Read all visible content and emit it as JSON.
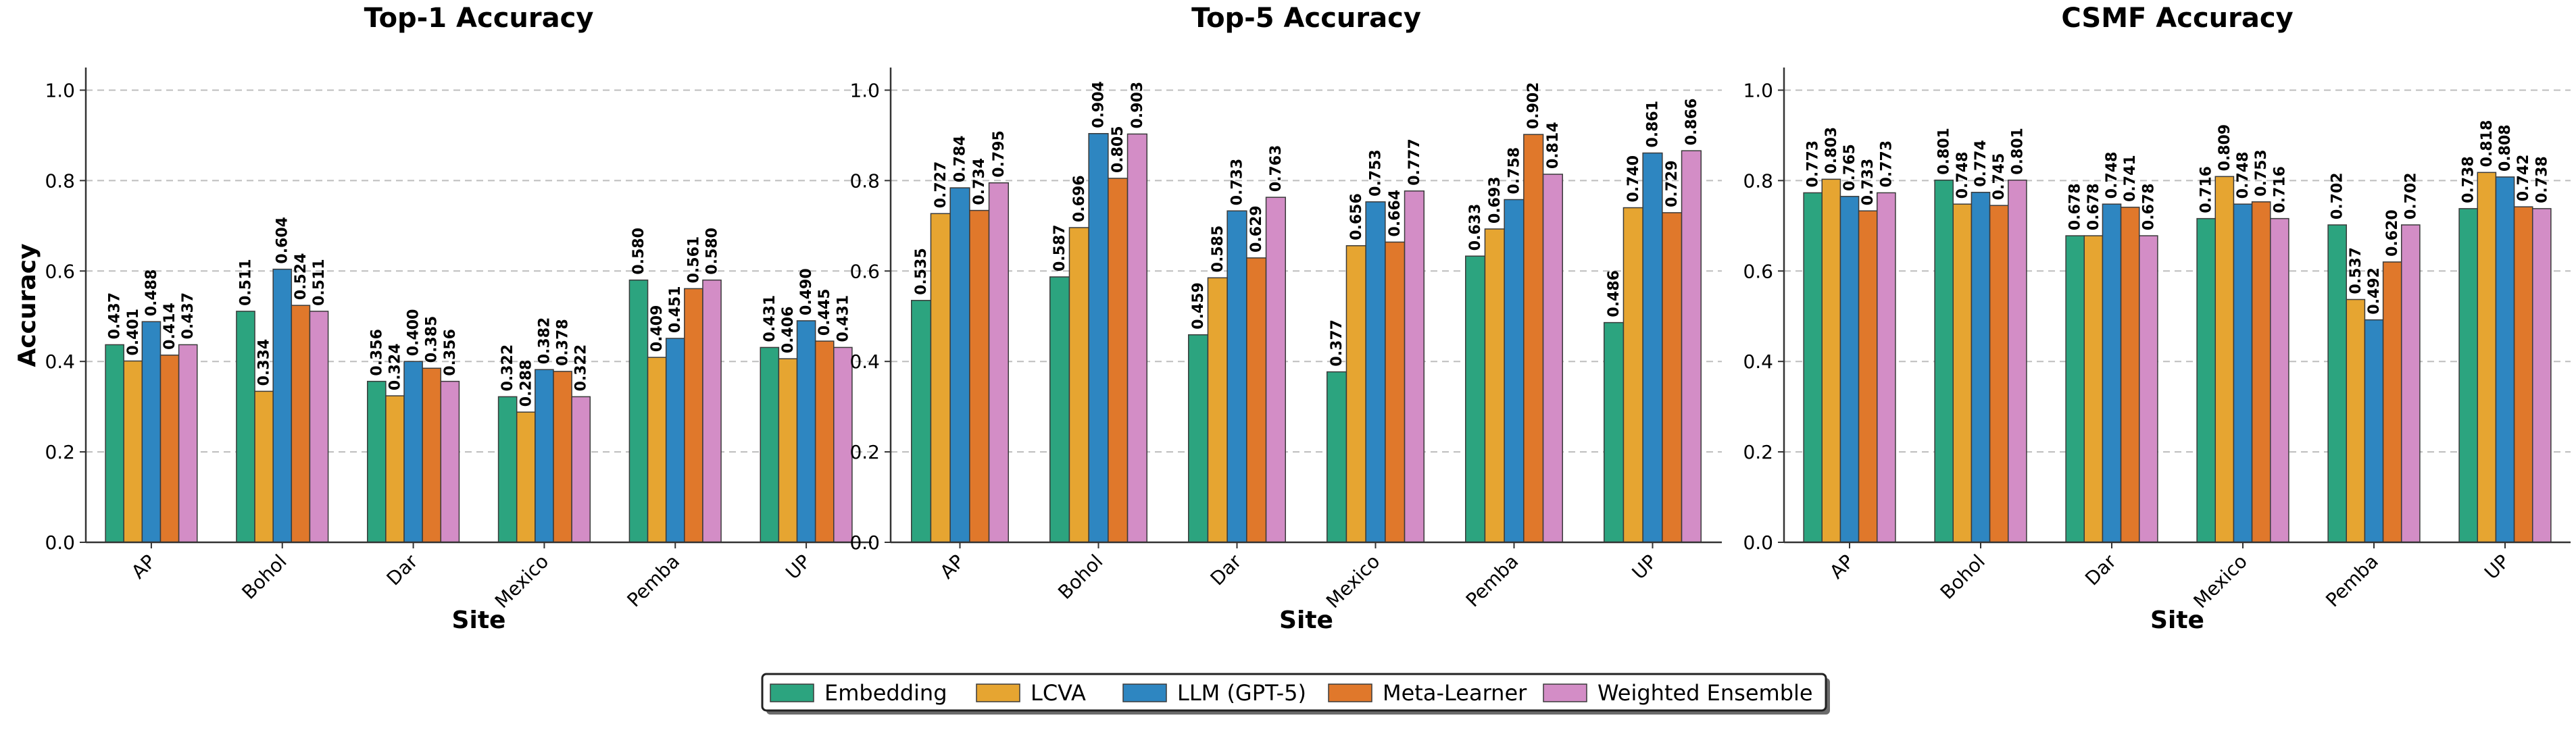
{
  "chart_data": {
    "type": "bar",
    "categories": [
      "AP",
      "Bohol",
      "Dar",
      "Mexico",
      "Pemba",
      "UP"
    ],
    "xlabel": "Site",
    "ylabel": "Accuracy",
    "ylim": [
      0,
      1.05
    ],
    "yticks": [
      "0.0",
      "0.2",
      "0.4",
      "0.6",
      "0.8",
      "1.0"
    ],
    "grid": "horizontal dashed",
    "legend": {
      "position": "bottom-center",
      "entries": [
        "Embedding",
        "LCVA",
        "LLM (GPT-5)",
        "Meta-Learner",
        "Weighted Ensemble"
      ]
    },
    "series_colors": [
      "#2ca47f",
      "#e6a531",
      "#2e86c1",
      "#e0782b",
      "#d38dc6"
    ],
    "panels": [
      {
        "title": "Top-1 Accuracy",
        "series": [
          {
            "name": "Embedding",
            "values": [
              0.437,
              0.511,
              0.356,
              0.322,
              0.58,
              0.431
            ],
            "labels": [
              "0.437",
              "0.511",
              "0.356",
              "0.322",
              "0.580",
              "0.431"
            ]
          },
          {
            "name": "LCVA",
            "values": [
              0.401,
              0.334,
              0.324,
              0.288,
              0.409,
              0.406
            ],
            "labels": [
              "0.401",
              "0.334",
              "0.324",
              "0.288",
              "0.409",
              "0.406"
            ]
          },
          {
            "name": "LLM (GPT-5)",
            "values": [
              0.488,
              0.604,
              0.4,
              0.382,
              0.451,
              0.49
            ],
            "labels": [
              "0.488",
              "0.604",
              "0.400",
              "0.382",
              "0.451",
              "0.490"
            ]
          },
          {
            "name": "Meta-Learner",
            "values": [
              0.414,
              0.524,
              0.385,
              0.378,
              0.561,
              0.445
            ],
            "labels": [
              "0.414",
              "0.524",
              "0.385",
              "0.378",
              "0.561",
              "0.445"
            ]
          },
          {
            "name": "Weighted Ensemble",
            "values": [
              0.437,
              0.511,
              0.356,
              0.322,
              0.58,
              0.431
            ],
            "labels": [
              "0.437",
              "0.511",
              "0.356",
              "0.322",
              "0.580",
              "0.431"
            ]
          }
        ]
      },
      {
        "title": "Top-5 Accuracy",
        "series": [
          {
            "name": "Embedding",
            "values": [
              0.535,
              0.587,
              0.459,
              0.377,
              0.633,
              0.486
            ],
            "labels": [
              "0.535",
              "0.587",
              "0.459",
              "0.377",
              "0.633",
              "0.486"
            ]
          },
          {
            "name": "LCVA",
            "values": [
              0.727,
              0.696,
              0.585,
              0.656,
              0.693,
              0.74
            ],
            "labels": [
              "0.727",
              "0.696",
              "0.585",
              "0.656",
              "0.693",
              "0.740"
            ]
          },
          {
            "name": "LLM (GPT-5)",
            "values": [
              0.784,
              0.904,
              0.733,
              0.753,
              0.758,
              0.861
            ],
            "labels": [
              "0.784",
              "0.904",
              "0.733",
              "0.753",
              "0.758",
              "0.861"
            ]
          },
          {
            "name": "Meta-Learner",
            "values": [
              0.734,
              0.805,
              0.629,
              0.664,
              0.902,
              0.729
            ],
            "labels": [
              "0.734",
              "0.805",
              "0.629",
              "0.664",
              "0.902",
              "0.729"
            ]
          },
          {
            "name": "Weighted Ensemble",
            "values": [
              0.795,
              0.903,
              0.763,
              0.777,
              0.814,
              0.866
            ],
            "labels": [
              "0.795",
              "0.903",
              "0.763",
              "0.777",
              "0.814",
              "0.866"
            ]
          }
        ]
      },
      {
        "title": "CSMF Accuracy",
        "series": [
          {
            "name": "Embedding",
            "values": [
              0.773,
              0.801,
              0.678,
              0.716,
              0.702,
              0.738
            ],
            "labels": [
              "0.773",
              "0.801",
              "0.678",
              "0.716",
              "0.702",
              "0.738"
            ]
          },
          {
            "name": "LCVA",
            "values": [
              0.803,
              0.748,
              0.678,
              0.809,
              0.537,
              0.818
            ],
            "labels": [
              "0.803",
              "0.748",
              "0.678",
              "0.809",
              "0.537",
              "0.818"
            ]
          },
          {
            "name": "LLM (GPT-5)",
            "values": [
              0.765,
              0.774,
              0.748,
              0.748,
              0.492,
              0.808
            ],
            "labels": [
              "0.765",
              "0.774",
              "0.748",
              "0.748",
              "0.492",
              "0.808"
            ]
          },
          {
            "name": "Meta-Learner",
            "values": [
              0.733,
              0.745,
              0.741,
              0.753,
              0.62,
              0.742
            ],
            "labels": [
              "0.733",
              "0.745",
              "0.741",
              "0.753",
              "0.620",
              "0.742"
            ]
          },
          {
            "name": "Weighted Ensemble",
            "values": [
              0.773,
              0.801,
              0.678,
              0.716,
              0.702,
              0.738
            ],
            "labels": [
              "0.773",
              "0.801",
              "0.678",
              "0.716",
              "0.702",
              "0.738"
            ]
          }
        ]
      }
    ]
  }
}
